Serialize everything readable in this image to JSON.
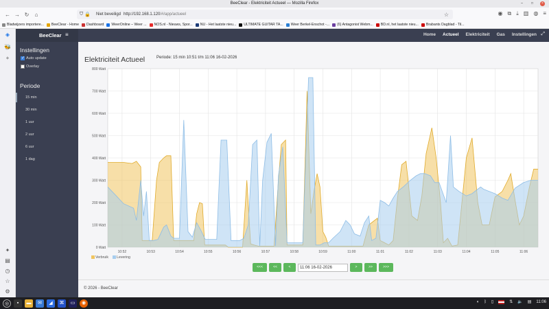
{
  "window": {
    "title": "BeeClear - Elektriciteit Actueel — Mozilla Firefox"
  },
  "browser": {
    "security_label": "Niet beveiligd",
    "url_host": "http://192.168.1.120",
    "url_path": "/#/app/actueel",
    "bookmarks": [
      {
        "label": "Bladwijzers importere...",
        "color": "#888"
      },
      {
        "label": "BeeClear - Home",
        "color": "#e5a500"
      },
      {
        "label": "Dashboard",
        "color": "#c33"
      },
      {
        "label": "WeerOnline – Weer ...",
        "color": "#1a73e8"
      },
      {
        "label": "NOS.nl - Nieuws, Spor...",
        "color": "#e62b2b"
      },
      {
        "label": "NU - Het laatste nieu...",
        "color": "#1d3c78"
      },
      {
        "label": "ULTIMATE GUITAR TA...",
        "color": "#111"
      },
      {
        "label": "Weer Berkel-Enschot -...",
        "color": "#2a7fd4"
      },
      {
        "label": "(6) Antagonist Webm...",
        "color": "#6b3fa0"
      },
      {
        "label": "BD.nl, het laatste nieu...",
        "color": "#c00"
      },
      {
        "label": "Brabants Dagblad - Til...",
        "color": "#c00"
      }
    ]
  },
  "app": {
    "brand": "BeeClear",
    "nav": [
      "Home",
      "Actueel",
      "Elektriciteit",
      "Gas",
      "Instellingen"
    ],
    "active_nav": "Actueel",
    "sidebar": {
      "settings_heading": "Instellingen",
      "auto_update_label": "Auto update",
      "auto_update_checked": true,
      "overlay_label": "Overlay",
      "overlay_checked": false,
      "period_heading": "Periode",
      "periods": [
        "15 min",
        "30 min",
        "1 uur",
        "2 uur",
        "6 uur",
        "1 dag"
      ],
      "active_period": "15 min"
    },
    "page_title": "Elektriciteit Actueel",
    "period_text": "Periode: 15 min 10:51 t/m 11:06 16-02-2026",
    "pager": {
      "first": "<<<",
      "prev_big": "<<",
      "prev": "<",
      "date_value": "11:06 16-02-2026",
      "next": ">",
      "next_big": ">>",
      "last": ">>>"
    },
    "footer": "© 2026 - BeeClear"
  },
  "chart_data": {
    "type": "area",
    "y_ticks": [
      "0 Watt",
      "100 Watt",
      "200 Watt",
      "300 Watt",
      "400 Watt",
      "500 Watt",
      "600 Watt",
      "700 Watt",
      "800 Watt"
    ],
    "x_ticks": [
      "10:52",
      "10:53",
      "10:54",
      "10:55",
      "10:56",
      "10:57",
      "10:58",
      "10:59",
      "11:00",
      "11:01",
      "11:02",
      "11:03",
      "11:04",
      "11:05",
      "11:06"
    ],
    "ylim": [
      0,
      800
    ],
    "xlim_minutes": [
      0,
      15
    ],
    "grid": true,
    "legend_position": "bottom-left",
    "colors": {
      "verbruik": "#f0c560",
      "levering": "#a7cdee"
    },
    "series": [
      {
        "name": "Verbruik",
        "points": [
          [
            0,
            380
          ],
          [
            0.3,
            380
          ],
          [
            0.55,
            380
          ],
          [
            0.85,
            375
          ],
          [
            1.0,
            385
          ],
          [
            1.15,
            360
          ],
          [
            1.2,
            30
          ],
          [
            1.4,
            30
          ],
          [
            1.55,
            30
          ],
          [
            1.7,
            300
          ],
          [
            1.8,
            380
          ],
          [
            1.95,
            400
          ],
          [
            2.05,
            410
          ],
          [
            2.2,
            410
          ],
          [
            2.3,
            30
          ],
          [
            2.5,
            30
          ],
          [
            2.75,
            30
          ],
          [
            2.95,
            30
          ],
          [
            3.0,
            30
          ],
          [
            3.1,
            150
          ],
          [
            3.2,
            200
          ],
          [
            3.3,
            195
          ],
          [
            3.38,
            10
          ],
          [
            3.5,
            10
          ],
          [
            3.7,
            10
          ],
          [
            4.0,
            10
          ],
          [
            4.1,
            10
          ],
          [
            4.2,
            0
          ],
          [
            4.3,
            0
          ],
          [
            4.45,
            0
          ],
          [
            4.7,
            0
          ],
          [
            4.85,
            300
          ],
          [
            4.98,
            15
          ],
          [
            5.1,
            10
          ],
          [
            5.25,
            5
          ],
          [
            5.35,
            5
          ],
          [
            5.65,
            5
          ],
          [
            5.8,
            5
          ],
          [
            5.95,
            300
          ],
          [
            6.05,
            460
          ],
          [
            6.2,
            480
          ],
          [
            6.25,
            10
          ],
          [
            6.35,
            10
          ],
          [
            6.5,
            10
          ],
          [
            6.8,
            10
          ],
          [
            6.95,
            700
          ],
          [
            7.08,
            150
          ],
          [
            7.2,
            260
          ],
          [
            7.3,
            330
          ],
          [
            7.4,
            270
          ],
          [
            7.5,
            70
          ],
          [
            7.6,
            45
          ],
          [
            7.7,
            5
          ],
          [
            7.9,
            5
          ],
          [
            8.1,
            5
          ],
          [
            8.3,
            5
          ],
          [
            8.5,
            5
          ],
          [
            8.7,
            5
          ],
          [
            8.9,
            5
          ],
          [
            9.1,
            100
          ],
          [
            9.4,
            130
          ],
          [
            9.5,
            30
          ],
          [
            9.65,
            20
          ],
          [
            9.8,
            10
          ],
          [
            9.95,
            30
          ],
          [
            10.1,
            220
          ],
          [
            10.25,
            370
          ],
          [
            10.4,
            385
          ],
          [
            10.6,
            140
          ],
          [
            10.8,
            120
          ],
          [
            10.95,
            230
          ],
          [
            11.1,
            420
          ],
          [
            11.3,
            535
          ],
          [
            11.45,
            400
          ],
          [
            11.6,
            200
          ],
          [
            11.7,
            20
          ],
          [
            11.85,
            40
          ],
          [
            12.0,
            5
          ],
          [
            12.2,
            10
          ],
          [
            12.5,
            400
          ],
          [
            12.7,
            490
          ],
          [
            12.9,
            200
          ],
          [
            13.05,
            100
          ],
          [
            13.3,
            100
          ],
          [
            13.5,
            225
          ],
          [
            13.75,
            250
          ],
          [
            13.95,
            300
          ],
          [
            14.05,
            330
          ],
          [
            14.2,
            210
          ],
          [
            14.35,
            100
          ],
          [
            14.5,
            140
          ],
          [
            14.7,
            270
          ],
          [
            14.85,
            350
          ],
          [
            15,
            350
          ]
        ]
      },
      {
        "name": "Levering",
        "points": [
          [
            0,
            270
          ],
          [
            0.3,
            230
          ],
          [
            0.55,
            195
          ],
          [
            0.9,
            175
          ],
          [
            1.0,
            120
          ],
          [
            1.15,
            300
          ],
          [
            1.25,
            140
          ],
          [
            1.35,
            250
          ],
          [
            1.45,
            30
          ],
          [
            1.6,
            30
          ],
          [
            1.75,
            35
          ],
          [
            1.95,
            90
          ],
          [
            2.05,
            100
          ],
          [
            2.2,
            50
          ],
          [
            2.3,
            40
          ],
          [
            2.5,
            40
          ],
          [
            2.65,
            570
          ],
          [
            2.8,
            70
          ],
          [
            2.95,
            45
          ],
          [
            3.1,
            110
          ],
          [
            3.25,
            75
          ],
          [
            3.4,
            35
          ],
          [
            3.6,
            35
          ],
          [
            3.8,
            35
          ],
          [
            3.95,
            480
          ],
          [
            4.15,
            480
          ],
          [
            4.3,
            30
          ],
          [
            4.45,
            30
          ],
          [
            4.6,
            30
          ],
          [
            4.75,
            40
          ],
          [
            4.9,
            100
          ],
          [
            5.05,
            460
          ],
          [
            5.2,
            480
          ],
          [
            5.3,
            5
          ],
          [
            5.4,
            300
          ],
          [
            5.55,
            470
          ],
          [
            5.7,
            510
          ],
          [
            5.85,
            5
          ],
          [
            5.95,
            320
          ],
          [
            6.1,
            450
          ],
          [
            6.25,
            20
          ],
          [
            6.4,
            20
          ],
          [
            6.6,
            20
          ],
          [
            6.8,
            20
          ],
          [
            7.0,
            760
          ],
          [
            7.15,
            760
          ],
          [
            7.25,
            10
          ],
          [
            7.4,
            10
          ],
          [
            7.55,
            20
          ],
          [
            7.7,
            20
          ],
          [
            7.85,
            40
          ],
          [
            8.1,
            70
          ],
          [
            8.3,
            120
          ],
          [
            8.45,
            100
          ],
          [
            8.6,
            60
          ],
          [
            8.8,
            50
          ],
          [
            8.95,
            110
          ],
          [
            9.1,
            140
          ],
          [
            9.2,
            30
          ],
          [
            9.35,
            40
          ],
          [
            9.5,
            210
          ],
          [
            9.65,
            200
          ],
          [
            9.8,
            185
          ],
          [
            9.95,
            220
          ],
          [
            10.1,
            250
          ],
          [
            10.3,
            270
          ],
          [
            10.55,
            300
          ],
          [
            10.75,
            320
          ],
          [
            10.9,
            330
          ],
          [
            11.05,
            330
          ],
          [
            11.25,
            320
          ],
          [
            11.4,
            290
          ],
          [
            11.55,
            290
          ],
          [
            11.8,
            200
          ],
          [
            11.95,
            500
          ],
          [
            12.05,
            270
          ],
          [
            12.25,
            250
          ],
          [
            12.5,
            230
          ],
          [
            12.7,
            240
          ],
          [
            12.9,
            260
          ],
          [
            13.0,
            270
          ],
          [
            13.1,
            260
          ],
          [
            13.3,
            250
          ],
          [
            13.5,
            240
          ],
          [
            13.75,
            220
          ],
          [
            13.95,
            210
          ],
          [
            14.2,
            265
          ],
          [
            14.5,
            290
          ],
          [
            14.75,
            300
          ],
          [
            15,
            300
          ]
        ]
      }
    ]
  }
}
